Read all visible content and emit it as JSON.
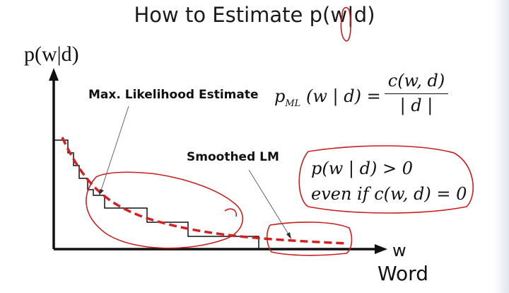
{
  "slide": {
    "title": "How to Estimate p(w|d)",
    "y_axis_label": "p(w|d)",
    "x_axis_symbol": "w",
    "x_axis_label": "Word",
    "ml_label": "Max. Likelihood Estimate",
    "ml_formula_lhs": "p",
    "ml_formula_sub": "ML",
    "ml_formula_args": "(w | d) =",
    "ml_numerator": "c(w, d)",
    "ml_denominator": "| d |",
    "smoothed_label": "Smoothed LM",
    "condition_1": "p(w | d) > 0",
    "condition_2": "even  if   c(w, d) = 0"
  },
  "colors": {
    "ink": "#111111",
    "annotation_red": "#c81e1e",
    "smoothed_curve": "#d42020"
  }
}
